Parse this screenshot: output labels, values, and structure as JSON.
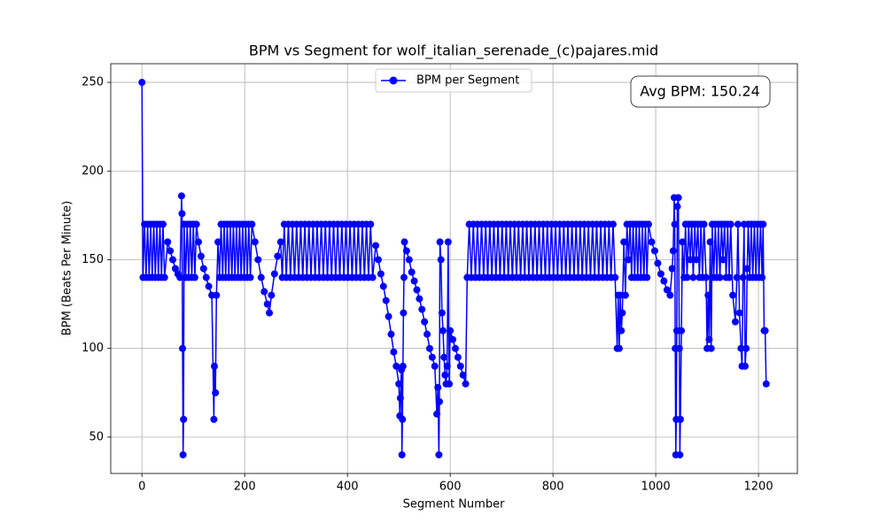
{
  "chart_data": {
    "type": "line",
    "title": "BPM vs Segment for wolf_italian_serenade_(c)pajares.mid",
    "x_label": "Segment Number",
    "y_label": "BPM (Beats Per Minute)",
    "annotation": "Avg BPM: 150.24",
    "legend": "upper center",
    "grid": true,
    "xlim": [
      -60.75,
      1275.75
    ],
    "ylim": [
      29.5,
      260.5
    ],
    "xticks": [
      0,
      200,
      400,
      600,
      800,
      1000,
      1200
    ],
    "yticks": [
      50,
      100,
      150,
      200,
      250
    ],
    "x": [
      0,
      2,
      5,
      8,
      11,
      14,
      17,
      20,
      23,
      26,
      29,
      32,
      35,
      38,
      41,
      44,
      50,
      55,
      60,
      65,
      70,
      74,
      77,
      78,
      79,
      80,
      81,
      82,
      85,
      88,
      91,
      94,
      97,
      100,
      103,
      106,
      110,
      115,
      120,
      125,
      130,
      136,
      140,
      141,
      143,
      145,
      148,
      151,
      154,
      157,
      160,
      163,
      166,
      169,
      172,
      175,
      178,
      181,
      184,
      187,
      190,
      193,
      196,
      199,
      202,
      205,
      208,
      211,
      214,
      220,
      226,
      232,
      238,
      244,
      248,
      252,
      258,
      264,
      270,
      273,
      277,
      281,
      285,
      289,
      293,
      297,
      301,
      305,
      309,
      313,
      317,
      321,
      325,
      329,
      333,
      337,
      341,
      345,
      349,
      353,
      357,
      361,
      365,
      369,
      373,
      377,
      381,
      385,
      389,
      393,
      397,
      401,
      405,
      409,
      413,
      417,
      421,
      425,
      429,
      433,
      437,
      441,
      445,
      449,
      455,
      460,
      465,
      470,
      475,
      480,
      485,
      490,
      495,
      500,
      502,
      503,
      505,
      506,
      507,
      508,
      509,
      510,
      511,
      515,
      520,
      525,
      530,
      535,
      540,
      545,
      550,
      555,
      560,
      565,
      570,
      574,
      576,
      578,
      579,
      580,
      582,
      584,
      586,
      588,
      590,
      592,
      594,
      596,
      598,
      600,
      605,
      610,
      615,
      620,
      625,
      630,
      633,
      637,
      641,
      645,
      649,
      653,
      657,
      661,
      665,
      669,
      673,
      677,
      681,
      685,
      689,
      693,
      697,
      701,
      705,
      709,
      713,
      717,
      721,
      725,
      729,
      733,
      737,
      741,
      745,
      749,
      753,
      757,
      761,
      765,
      769,
      773,
      777,
      781,
      785,
      789,
      793,
      797,
      801,
      805,
      809,
      813,
      817,
      821,
      825,
      829,
      833,
      837,
      841,
      845,
      849,
      853,
      857,
      861,
      865,
      869,
      873,
      877,
      881,
      885,
      889,
      893,
      897,
      901,
      905,
      909,
      913,
      917,
      921,
      925,
      927,
      929,
      931,
      933,
      935,
      938,
      941,
      944,
      947,
      950,
      953,
      956,
      959,
      962,
      965,
      968,
      971,
      974,
      977,
      980,
      983,
      986,
      992,
      998,
      1004,
      1010,
      1016,
      1022,
      1028,
      1032,
      1034,
      1036,
      1037,
      1038,
      1039,
      1040,
      1041,
      1042,
      1044,
      1046,
      1047,
      1048,
      1050,
      1052,
      1055,
      1058,
      1061,
      1064,
      1067,
      1070,
      1073,
      1076,
      1079,
      1082,
      1085,
      1088,
      1091,
      1094,
      1098,
      1100,
      1102,
      1104,
      1106,
      1108,
      1110,
      1113,
      1116,
      1119,
      1122,
      1125,
      1128,
      1131,
      1134,
      1137,
      1140,
      1143,
      1146,
      1150,
      1155,
      1158,
      1160,
      1163,
      1166,
      1168,
      1170,
      1172,
      1174,
      1176,
      1178,
      1180,
      1183,
      1186,
      1189,
      1192,
      1195,
      1198,
      1201,
      1204,
      1207,
      1209,
      1211,
      1213,
      1215
    ],
    "series": [
      {
        "name": "BPM per Segment",
        "color": "#0000ff",
        "values": [
          250,
          140,
          170,
          140,
          170,
          140,
          170,
          140,
          170,
          140,
          170,
          140,
          170,
          140,
          170,
          140,
          160,
          155,
          150,
          145,
          142,
          140,
          186,
          176,
          100,
          40,
          60,
          170,
          140,
          170,
          140,
          170,
          140,
          170,
          140,
          170,
          160,
          152,
          145,
          140,
          135,
          130,
          60,
          90,
          75,
          130,
          160,
          140,
          170,
          140,
          170,
          140,
          170,
          140,
          170,
          140,
          170,
          140,
          170,
          140,
          170,
          140,
          170,
          140,
          170,
          140,
          170,
          140,
          170,
          160,
          150,
          140,
          132,
          125,
          120,
          130,
          142,
          152,
          160,
          140,
          170,
          140,
          170,
          140,
          170,
          140,
          170,
          140,
          170,
          140,
          170,
          140,
          170,
          140,
          170,
          140,
          170,
          140,
          170,
          140,
          170,
          140,
          170,
          140,
          170,
          140,
          170,
          140,
          170,
          140,
          170,
          140,
          170,
          140,
          170,
          140,
          170,
          140,
          170,
          140,
          170,
          140,
          170,
          140,
          158,
          150,
          142,
          135,
          127,
          118,
          108,
          98,
          90,
          80,
          62,
          72,
          88,
          40,
          60,
          90,
          120,
          140,
          160,
          155,
          150,
          143,
          138,
          133,
          128,
          122,
          115,
          108,
          100,
          95,
          90,
          63,
          78,
          40,
          70,
          160,
          150,
          120,
          110,
          95,
          85,
          80,
          90,
          160,
          80,
          110,
          105,
          100,
          95,
          90,
          85,
          80,
          140,
          170,
          140,
          170,
          140,
          170,
          140,
          170,
          140,
          170,
          140,
          170,
          140,
          170,
          140,
          170,
          140,
          170,
          140,
          170,
          140,
          170,
          140,
          170,
          140,
          170,
          140,
          170,
          140,
          170,
          140,
          170,
          140,
          170,
          140,
          170,
          140,
          170,
          140,
          170,
          140,
          170,
          140,
          170,
          140,
          170,
          140,
          170,
          140,
          170,
          140,
          170,
          140,
          170,
          140,
          170,
          140,
          170,
          140,
          170,
          140,
          170,
          140,
          170,
          140,
          170,
          140,
          170,
          140,
          170,
          140,
          170,
          140,
          100,
          130,
          100,
          130,
          110,
          120,
          160,
          130,
          170,
          150,
          170,
          140,
          170,
          140,
          170,
          140,
          170,
          140,
          170,
          140,
          170,
          140,
          170,
          160,
          155,
          148,
          142,
          138,
          133,
          130,
          145,
          155,
          185,
          170,
          100,
          40,
          60,
          110,
          180,
          185,
          100,
          40,
          60,
          110,
          160,
          140,
          170,
          140,
          170,
          150,
          170,
          140,
          170,
          150,
          170,
          140,
          170,
          140,
          170,
          140,
          100,
          130,
          105,
          160,
          100,
          170,
          140,
          170,
          140,
          170,
          140,
          170,
          150,
          170,
          140,
          170,
          140,
          170,
          130,
          115,
          140,
          170,
          120,
          100,
          90,
          140,
          170,
          90,
          100,
          145,
          170,
          140,
          170,
          140,
          170,
          140,
          170,
          140,
          170,
          140,
          170,
          110,
          110,
          80
        ]
      }
    ]
  }
}
